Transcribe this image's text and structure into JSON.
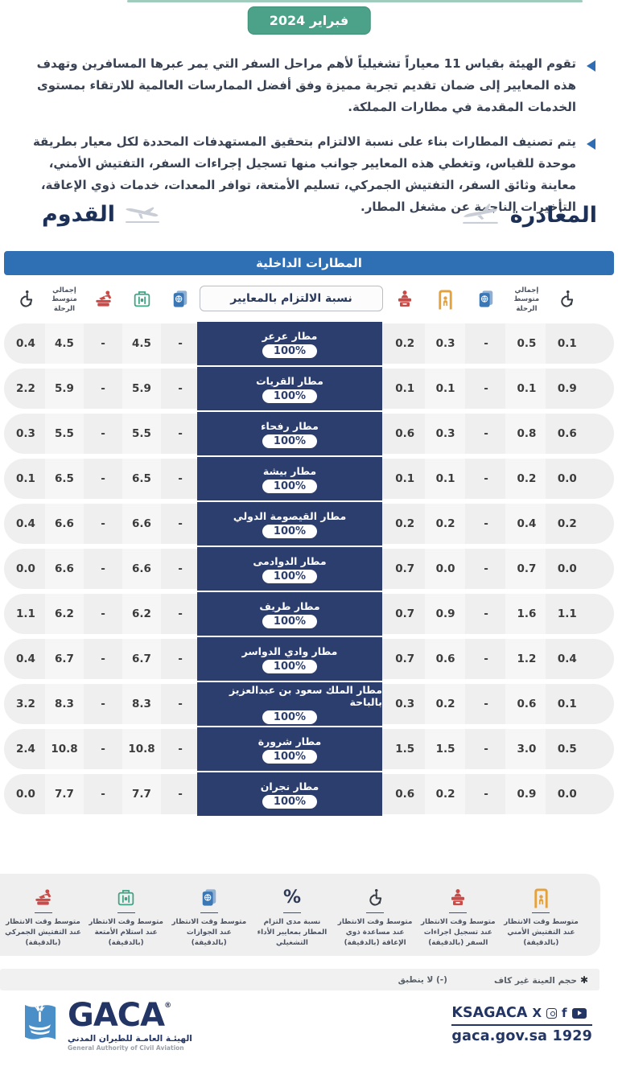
{
  "meta": {
    "date_badge": "فبراير 2024"
  },
  "intro": {
    "paragraphs": [
      "تقوم الهيئة بقياس 11 معياراً تشغيلياً لأهم مراحل السفر التي يمر عبرها المسافرين وتهدف هذه المعايير إلى ضمان تقديم تجربة مميزة وفق أفضل الممارسات العالمية للارتقاء بمستوى الخدمات المقدمة في مطارات المملكة.",
      "يتم تصنيف المطارات بناء على نسبة الالتزام بتحقيق المستهدفات المحددة لكل معيار بطريقة موحدة للقياس، وتغطي هذه المعايير جوانب منها تسجيل إجراءات السفر، التفتيش الأمني، معاينة وثائق السفر، التفتيش الجمركي، تسليم الأمتعة، توافر المعدات، خدمات ذوي الإعاقة، التأخيرات الناجمة عن مشغل المطار."
    ]
  },
  "sections": {
    "arrival": "القدوم",
    "departure": "المغادرة"
  },
  "banner": {
    "title": "المطارات الداخلية"
  },
  "table": {
    "center_header": "نسبة الالتزام بالمعايير",
    "side_header_label": "إجمالي متوسط الرحلة",
    "arrival_columns": [
      "wheelchair-icon",
      "trip-average-label",
      "customs-icon",
      "baggage-icon",
      "passport-icon"
    ],
    "departure_columns": [
      "checkin-icon",
      "security-icon",
      "passport-icon",
      "trip-average-label",
      "wheelchair-icon"
    ],
    "rows": [
      {
        "airport": "مطار عرعر",
        "compliance": "100%",
        "arrival": [
          "0.4",
          "4.5",
          "-",
          "4.5",
          "-"
        ],
        "departure": [
          "0.2",
          "0.3",
          "-",
          "0.5",
          "0.1"
        ]
      },
      {
        "airport": "مطار القريات",
        "compliance": "100%",
        "arrival": [
          "2.2",
          "5.9",
          "-",
          "5.9",
          "-"
        ],
        "departure": [
          "0.1",
          "0.1",
          "-",
          "0.1",
          "0.9"
        ]
      },
      {
        "airport": "مطار رفحاء",
        "compliance": "100%",
        "arrival": [
          "0.3",
          "5.5",
          "-",
          "5.5",
          "-"
        ],
        "departure": [
          "0.6",
          "0.3",
          "-",
          "0.8",
          "0.6"
        ]
      },
      {
        "airport": "مطار بيشة",
        "compliance": "100%",
        "arrival": [
          "0.1",
          "6.5",
          "-",
          "6.5",
          "-"
        ],
        "departure": [
          "0.1",
          "0.1",
          "-",
          "0.2",
          "0.0"
        ]
      },
      {
        "airport": "مطار القيصومة الدولي",
        "compliance": "100%",
        "arrival": [
          "0.4",
          "6.6",
          "-",
          "6.6",
          "-"
        ],
        "departure": [
          "0.2",
          "0.2",
          "-",
          "0.4",
          "0.2"
        ]
      },
      {
        "airport": "مطار الدوادمى",
        "compliance": "100%",
        "arrival": [
          "0.0",
          "6.6",
          "-",
          "6.6",
          "-"
        ],
        "departure": [
          "0.7",
          "0.0",
          "-",
          "0.7",
          "0.0"
        ]
      },
      {
        "airport": "مطار طريف",
        "compliance": "100%",
        "arrival": [
          "1.1",
          "6.2",
          "-",
          "6.2",
          "-"
        ],
        "departure": [
          "0.7",
          "0.9",
          "-",
          "1.6",
          "1.1"
        ]
      },
      {
        "airport": "مطار وادي الدواسر",
        "compliance": "100%",
        "arrival": [
          "0.4",
          "6.7",
          "-",
          "6.7",
          "-"
        ],
        "departure": [
          "0.7",
          "0.6",
          "-",
          "1.2",
          "0.4"
        ]
      },
      {
        "airport": "مطار الملك سعود بن عبدالعزيز بالباحة",
        "compliance": "100%",
        "arrival": [
          "3.2",
          "8.3",
          "-",
          "8.3",
          "-"
        ],
        "departure": [
          "0.3",
          "0.2",
          "-",
          "0.6",
          "0.1"
        ]
      },
      {
        "airport": "مطار شرورة",
        "compliance": "100%",
        "arrival": [
          "2.4",
          "10.8",
          "-",
          "10.8",
          "-"
        ],
        "departure": [
          "1.5",
          "1.5",
          "-",
          "3.0",
          "0.5"
        ]
      },
      {
        "airport": "مطار نجران",
        "compliance": "100%",
        "arrival": [
          "0.0",
          "7.7",
          "-",
          "7.7",
          "-"
        ],
        "departure": [
          "0.6",
          "0.2",
          "-",
          "0.9",
          "0.0"
        ]
      }
    ]
  },
  "legend": {
    "items": [
      {
        "icon": "customs-icon",
        "label": "متوسط وقت الانتظار عند التفتيش الجمركي (بالدقيقة)"
      },
      {
        "icon": "baggage-icon",
        "label": "متوسط وقت الانتظار عند استلام الأمتعة (بالدقيقة)"
      },
      {
        "icon": "passport-icon",
        "label": "متوسط وقت الانتظار عند الجوازات (بالدقيقة)"
      },
      {
        "icon": "percent-icon",
        "label": "نسبة مدى التزام المطار بمعايير الأداء التشغيلي"
      },
      {
        "icon": "wheelchair-icon",
        "label": "متوسط وقت الانتظار عند مساعدة ذوي الإعاقة (بالدقيقة)"
      },
      {
        "icon": "checkin-icon",
        "label": "متوسط وقت الانتظار عند تسجيل اجراءات السفر (بالدقيقة)"
      },
      {
        "icon": "security-icon",
        "label": "متوسط وقت الانتظار عند التفتيش الأمني (بالدقيقة)"
      }
    ]
  },
  "notes": {
    "asterisk": "✱",
    "sample": "حجم العينة غير كاف",
    "na": "(-) لا ينطبق"
  },
  "footer": {
    "brand": "GACA",
    "reg": "®",
    "name_ar": "الهيئـة العامـة للطيران المدني",
    "name_en": "General Authority of Civil Aviation",
    "handle": "KSAGACA",
    "site": "gaca.gov.sa 1929"
  },
  "colors": {
    "badge_green": "#4BA288",
    "banner_blue": "#2F6FB3",
    "cell_navy": "#2C3E6D",
    "bullet_blue": "#2E6DB4",
    "row_gray": "#EFEFEF",
    "icon_red": "#C94A47",
    "icon_yellow": "#E5A23C",
    "icon_green": "#3FA483",
    "icon_blue": "#3C77B5",
    "brand_navy": "#233564"
  }
}
